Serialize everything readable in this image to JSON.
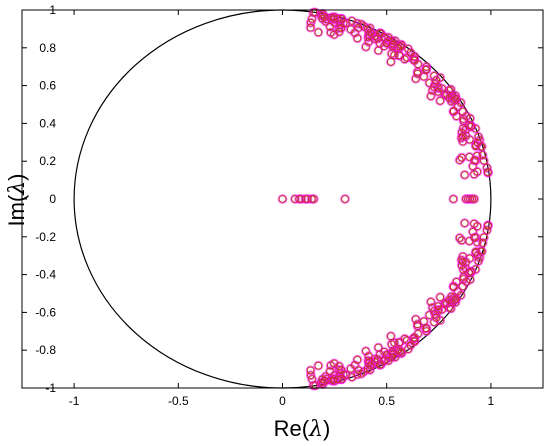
{
  "chart_data": {
    "type": "scatter",
    "title": "",
    "xlabel": {
      "prefix": "Re(",
      "symbol": "λ",
      "suffix": ")"
    },
    "ylabel": {
      "prefix": "Im(",
      "symbol": "λ",
      "suffix": ")"
    },
    "xlim": [
      -1.25,
      1.25
    ],
    "ylim": [
      -1,
      1
    ],
    "xticks": [
      -1,
      -0.5,
      0,
      0.5,
      1
    ],
    "xtick_labels": [
      "-1",
      "-0.5",
      "0",
      "0.5",
      "1"
    ],
    "yticks": [
      -1,
      -0.8,
      -0.6,
      -0.4,
      -0.2,
      0,
      0.2,
      0.4,
      0.6,
      0.8,
      1
    ],
    "ytick_labels": [
      "-1",
      "-0.8",
      "-0.6",
      "-0.4",
      "-0.2",
      "0",
      "0.2",
      "0.4",
      "0.6",
      "0.8",
      "1"
    ],
    "grid": false,
    "legend": "none",
    "unit_circle": {
      "center": [
        0,
        0
      ],
      "radius": 1,
      "color": "#000000"
    },
    "marker": {
      "shape": "open-circle",
      "color": "#c0392b",
      "halo_color": "#ff00ff"
    },
    "real_points": [
      {
        "x": 0.0,
        "y": 0
      },
      {
        "x": 0.06,
        "y": 0
      },
      {
        "x": 0.08,
        "y": 0
      },
      {
        "x": 0.09,
        "y": 0
      },
      {
        "x": 0.11,
        "y": 0
      },
      {
        "x": 0.12,
        "y": 0
      },
      {
        "x": 0.14,
        "y": 0
      },
      {
        "x": 0.15,
        "y": 0
      },
      {
        "x": 0.3,
        "y": 0
      },
      {
        "x": 0.82,
        "y": 0
      },
      {
        "x": 0.88,
        "y": 0
      },
      {
        "x": 0.89,
        "y": 0
      },
      {
        "x": 0.9,
        "y": 0
      },
      {
        "x": 0.91,
        "y": 0
      },
      {
        "x": 0.92,
        "y": 0
      }
    ],
    "eigenvalue_band": {
      "description_free": true,
      "arc_angle_deg_range": [
        8,
        82
      ],
      "symmetric_about_real_axis": true,
      "radius_range": [
        0.86,
        1.0
      ],
      "points_per_half": 170
    }
  }
}
